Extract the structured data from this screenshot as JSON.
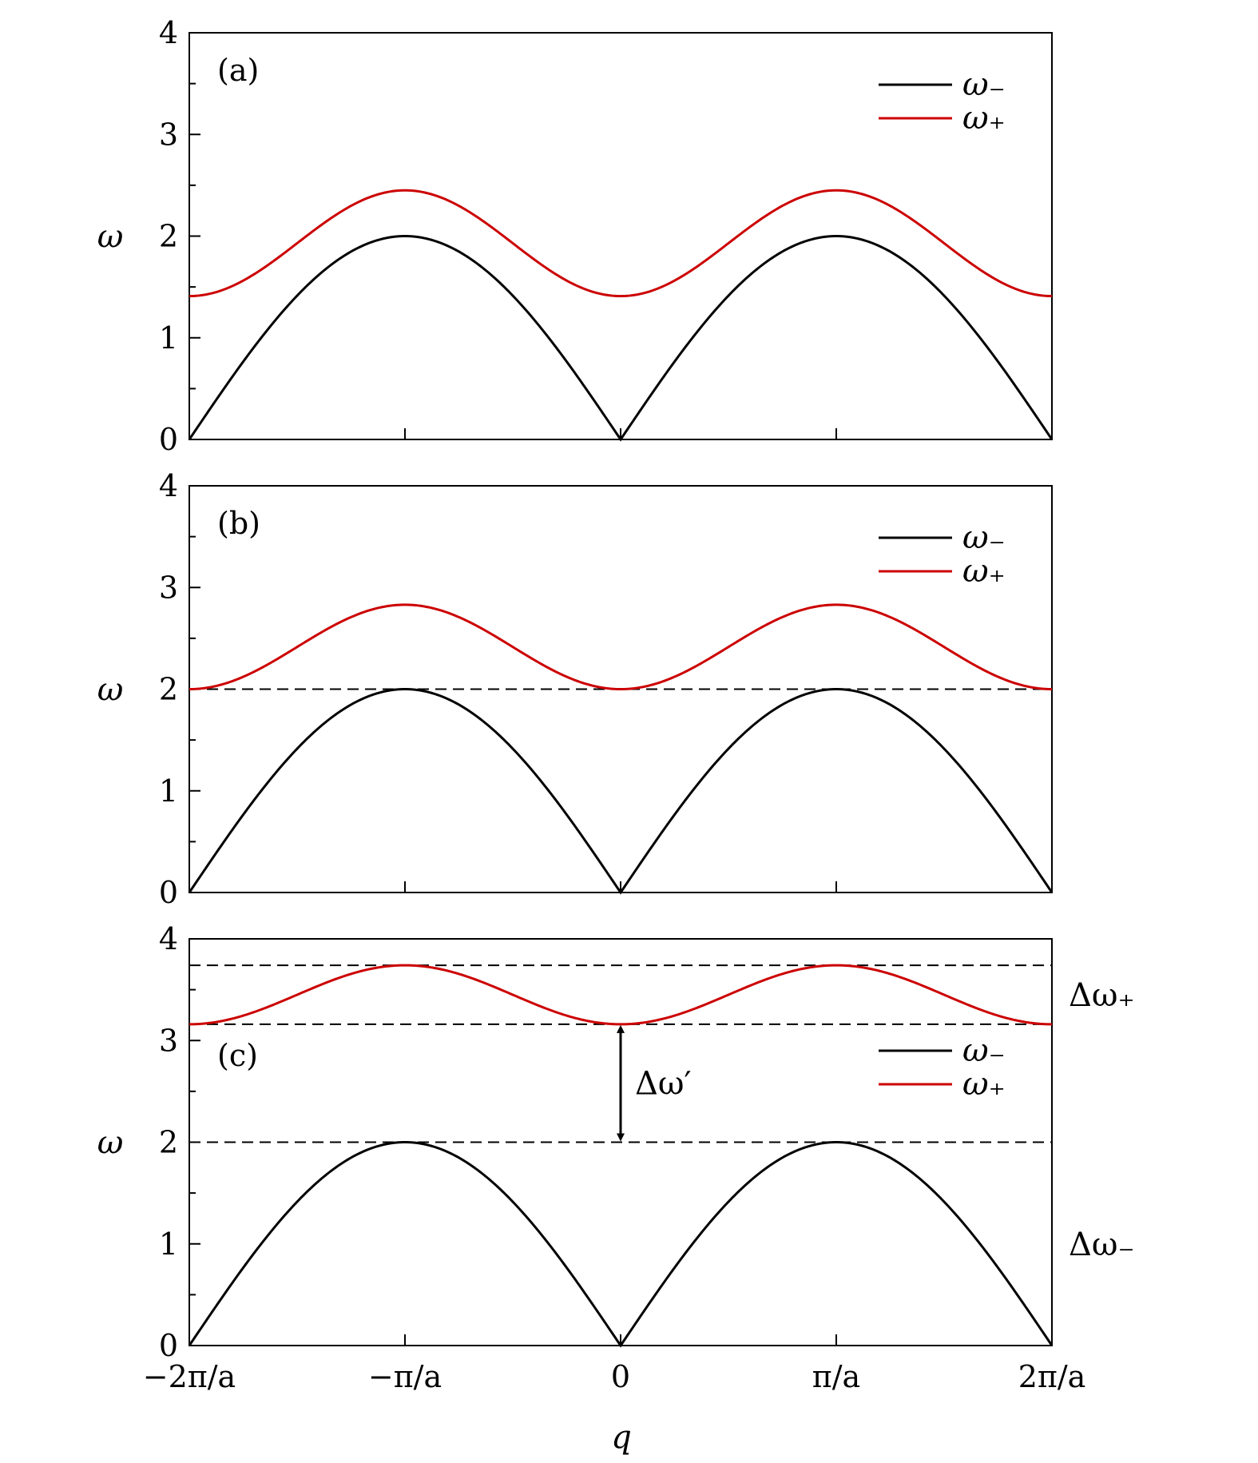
{
  "figure": {
    "xlabel": "q"
  },
  "colors": {
    "omega_minus": "#000000",
    "omega_plus": "#cc0000",
    "axes": "#000000"
  },
  "chart_data": [
    {
      "type": "line",
      "panel_label": "(a)",
      "xlabel": "",
      "ylabel": "ω",
      "x_unit": "π/a",
      "xlim": [
        -2,
        2
      ],
      "ylim": [
        0,
        4
      ],
      "yticks": [
        0,
        1,
        2,
        3,
        4
      ],
      "ytick_labels": [
        "0",
        "1",
        "2",
        "3",
        "4"
      ],
      "xticks": [
        -2,
        -1,
        0,
        1,
        2
      ],
      "xtick_labels": [
        "",
        "",
        "",
        "",
        ""
      ],
      "legend": {
        "position": "top-right",
        "entries": [
          "ω₋",
          "ω₊"
        ]
      },
      "series": [
        {
          "name": "ω₋",
          "color": "#000000",
          "x": [
            -2,
            -1.75,
            -1.5,
            -1.25,
            -1,
            -0.75,
            -0.5,
            -0.25,
            0,
            0.25,
            0.5,
            0.75,
            1,
            1.25,
            1.5,
            1.75,
            2
          ],
          "y": [
            0,
            0.77,
            1.41,
            1.85,
            2.0,
            1.85,
            1.41,
            0.77,
            0,
            0.77,
            1.41,
            1.85,
            2.0,
            1.85,
            1.41,
            0.77,
            0
          ]
        },
        {
          "name": "ω₊",
          "color": "#cc0000",
          "x": [
            -2,
            -1.75,
            -1.5,
            -1.25,
            -1,
            -0.75,
            -0.5,
            -0.25,
            0,
            0.25,
            0.5,
            0.75,
            1,
            1.25,
            1.5,
            1.75,
            2
          ],
          "y": [
            1.41,
            1.58,
            1.98,
            2.34,
            2.45,
            2.34,
            1.98,
            1.58,
            1.41,
            1.58,
            1.98,
            2.34,
            2.45,
            2.34,
            1.98,
            1.58,
            1.41
          ]
        }
      ],
      "hlines": [],
      "annotations": []
    },
    {
      "type": "line",
      "panel_label": "(b)",
      "xlabel": "",
      "ylabel": "ω",
      "x_unit": "π/a",
      "xlim": [
        -2,
        2
      ],
      "ylim": [
        0,
        4
      ],
      "yticks": [
        0,
        1,
        2,
        3,
        4
      ],
      "ytick_labels": [
        "0",
        "1",
        "2",
        "3",
        "4"
      ],
      "xticks": [
        -2,
        -1,
        0,
        1,
        2
      ],
      "xtick_labels": [
        "",
        "",
        "",
        "",
        ""
      ],
      "legend": {
        "position": "top-right",
        "entries": [
          "ω₋",
          "ω₊"
        ]
      },
      "series": [
        {
          "name": "ω₋",
          "color": "#000000",
          "x": [
            -2,
            -1.75,
            -1.5,
            -1.25,
            -1,
            -0.75,
            -0.5,
            -0.25,
            0,
            0.25,
            0.5,
            0.75,
            1,
            1.25,
            1.5,
            1.75,
            2
          ],
          "y": [
            0,
            0.77,
            1.41,
            1.85,
            2.0,
            1.85,
            1.41,
            0.77,
            0,
            0.77,
            1.41,
            1.85,
            2.0,
            1.85,
            1.41,
            0.77,
            0
          ]
        },
        {
          "name": "ω₊",
          "color": "#cc0000",
          "x": [
            -2,
            -1.75,
            -1.5,
            -1.25,
            -1,
            -0.75,
            -0.5,
            -0.25,
            0,
            0.25,
            0.5,
            0.75,
            1,
            1.25,
            1.5,
            1.75,
            2
          ],
          "y": [
            2.0,
            2.14,
            2.45,
            2.72,
            2.83,
            2.72,
            2.45,
            2.14,
            2.0,
            2.14,
            2.45,
            2.72,
            2.83,
            2.72,
            2.45,
            2.14,
            2.0
          ]
        }
      ],
      "hlines": [
        2.0
      ],
      "annotations": []
    },
    {
      "type": "line",
      "panel_label": "(c)",
      "xlabel": "q",
      "ylabel": "ω",
      "x_unit": "π/a",
      "xlim": [
        -2,
        2
      ],
      "ylim": [
        0,
        4
      ],
      "yticks": [
        0,
        1,
        2,
        3,
        4
      ],
      "ytick_labels": [
        "0",
        "1",
        "2",
        "3",
        "4"
      ],
      "xticks": [
        -2,
        -1,
        0,
        1,
        2
      ],
      "xtick_labels": [
        "−2π/a",
        "−π/a",
        "0",
        "π/a",
        "2π/a"
      ],
      "legend": {
        "position": "center-right",
        "entries": [
          "ω₋",
          "ω₊"
        ]
      },
      "series": [
        {
          "name": "ω₋",
          "color": "#000000",
          "x": [
            -2,
            -1.75,
            -1.5,
            -1.25,
            -1,
            -0.75,
            -0.5,
            -0.25,
            0,
            0.25,
            0.5,
            0.75,
            1,
            1.25,
            1.5,
            1.75,
            2
          ],
          "y": [
            0,
            0.77,
            1.41,
            1.85,
            2.0,
            1.85,
            1.41,
            0.77,
            0,
            0.77,
            1.41,
            1.85,
            2.0,
            1.85,
            1.41,
            0.77,
            0
          ]
        },
        {
          "name": "ω₊",
          "color": "#cc0000",
          "x": [
            -2,
            -1.75,
            -1.5,
            -1.25,
            -1,
            -0.75,
            -0.5,
            -0.25,
            0,
            0.25,
            0.5,
            0.75,
            1,
            1.25,
            1.5,
            1.75,
            2
          ],
          "y": [
            3.16,
            3.22,
            3.4,
            3.66,
            3.74,
            3.66,
            3.4,
            3.22,
            3.16,
            3.22,
            3.4,
            3.66,
            3.74,
            3.66,
            3.4,
            3.22,
            3.16
          ]
        }
      ],
      "hlines": [
        3.74,
        3.16,
        2.0
      ],
      "annotations": [
        {
          "text": "Δω₊",
          "y": 3.45
        },
        {
          "text": "Δω′",
          "y": 2.58,
          "arrow_from": 3.16,
          "arrow_to": 2.0,
          "arrow_x": 0
        },
        {
          "text": "Δω₋",
          "y": 1.0
        }
      ]
    }
  ]
}
